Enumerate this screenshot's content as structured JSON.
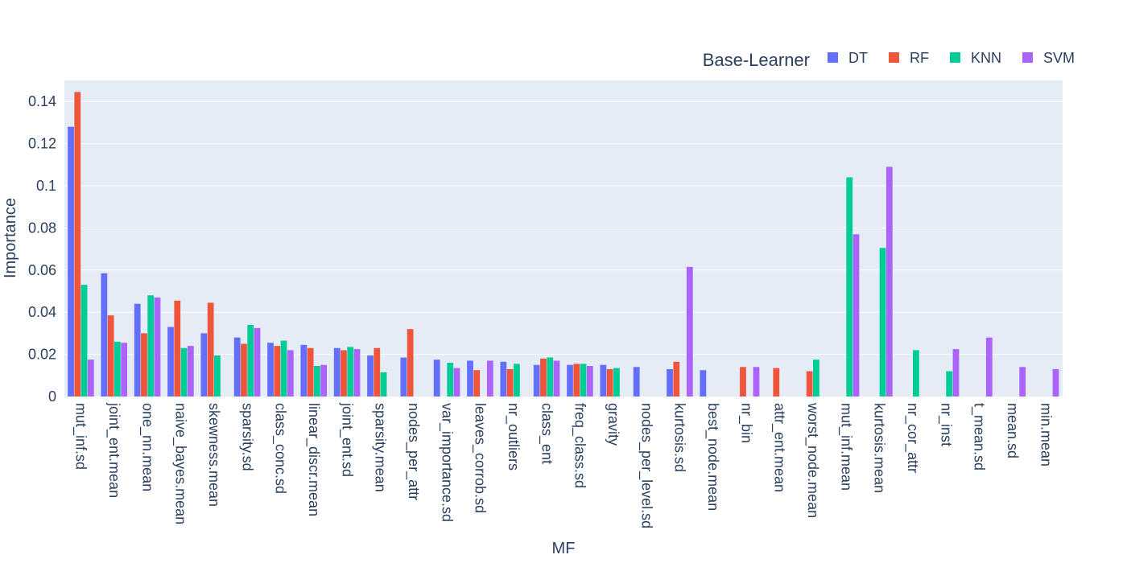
{
  "chart_data": {
    "type": "bar",
    "title": "",
    "xlabel": "MF",
    "ylabel": "Importance",
    "ylim": [
      0,
      0.15
    ],
    "yticks": [
      0,
      0.02,
      0.04,
      0.06,
      0.08,
      0.1,
      0.12,
      0.14
    ],
    "ytick_labels": [
      "0",
      "0.02",
      "0.04",
      "0.06",
      "0.08",
      "0.1",
      "0.12",
      "0.14"
    ],
    "grid": true,
    "legend": {
      "title": "Base-Learner",
      "position": "top-right",
      "orientation": "horizontal"
    },
    "categories": [
      "mut_inf.sd",
      "joint_ent.mean",
      "one_nn.mean",
      "naive_bayes.mean",
      "skewness.mean",
      "sparsity.sd",
      "class_conc.sd",
      "linear_discr.mean",
      "joint_ent.sd",
      "sparsity.mean",
      "nodes_per_attr",
      "var_importance.sd",
      "leaves_corrob.sd",
      "nr_outliers",
      "class_ent",
      "freq_class.sd",
      "gravity",
      "nodes_per_level.sd",
      "kurtosis.sd",
      "best_node.mean",
      "nr_bin",
      "attr_ent.mean",
      "worst_node.mean",
      "mut_inf.mean",
      "kurtosis.mean",
      "nr_cor_attr",
      "nr_inst",
      "t_mean.sd",
      "mean.sd",
      "min.mean"
    ],
    "series": [
      {
        "name": "DT",
        "color": "#636efa",
        "values": [
          0.128,
          0.0585,
          0.044,
          0.033,
          0.03,
          0.028,
          0.0255,
          0.0245,
          0.023,
          0.0195,
          0.0185,
          0.0175,
          0.017,
          0.0165,
          0.015,
          0.015,
          0.015,
          0.014,
          0.013,
          0.0125,
          null,
          null,
          null,
          null,
          null,
          null,
          null,
          null,
          null,
          null
        ]
      },
      {
        "name": "RF",
        "color": "#ef553b",
        "values": [
          0.1445,
          0.0385,
          0.03,
          0.0455,
          0.0445,
          0.025,
          0.024,
          0.023,
          0.022,
          0.023,
          0.032,
          null,
          0.0125,
          0.013,
          0.018,
          0.0155,
          0.013,
          null,
          0.0165,
          null,
          0.014,
          0.0135,
          0.012,
          null,
          null,
          null,
          null,
          null,
          null,
          null
        ]
      },
      {
        "name": "KNN",
        "color": "#00cc96",
        "values": [
          0.053,
          0.026,
          0.048,
          0.023,
          0.0195,
          0.034,
          0.0265,
          0.0145,
          0.0235,
          0.0115,
          null,
          0.016,
          null,
          0.0155,
          0.0185,
          0.0155,
          0.0135,
          null,
          null,
          null,
          null,
          null,
          0.0175,
          0.104,
          0.0705,
          0.022,
          0.012,
          null,
          null,
          null
        ]
      },
      {
        "name": "SVM",
        "color": "#ab63fa",
        "values": [
          0.0175,
          0.0255,
          0.047,
          0.024,
          null,
          0.0325,
          0.022,
          0.015,
          0.0225,
          null,
          null,
          0.0135,
          0.017,
          null,
          0.017,
          0.0145,
          null,
          null,
          0.0615,
          null,
          0.014,
          null,
          null,
          0.077,
          0.109,
          null,
          0.0225,
          0.028,
          0.014,
          0.013
        ]
      }
    ]
  }
}
